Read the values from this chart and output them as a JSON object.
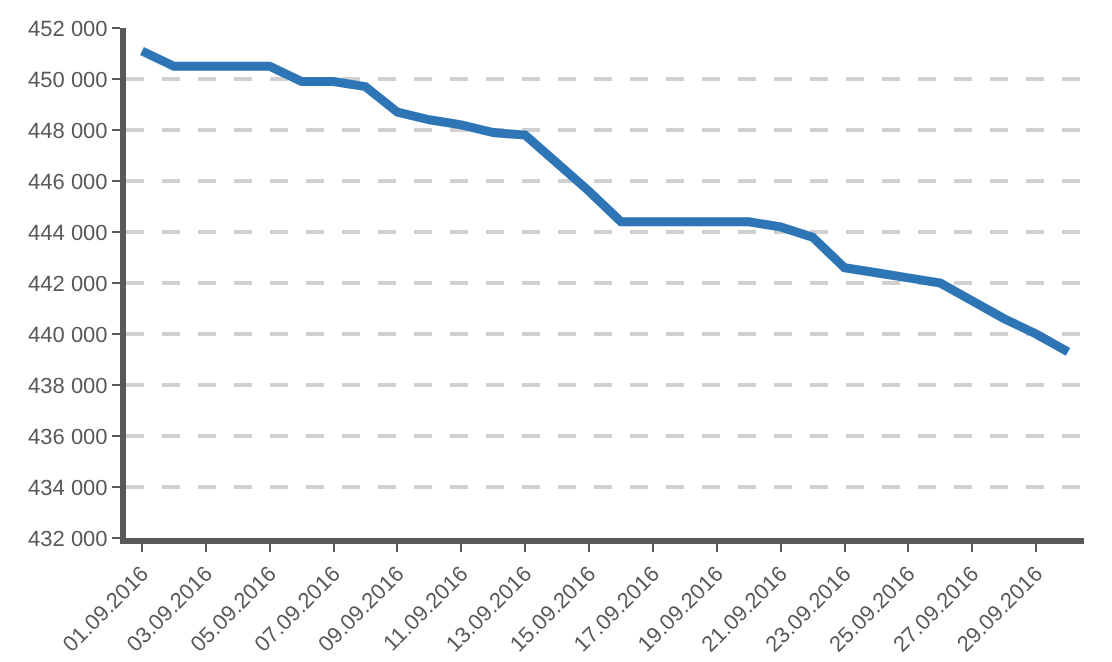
{
  "chart_data": {
    "type": "line",
    "categories": [
      "01.09.2016",
      null,
      "03.09.2016",
      null,
      "05.09.2016",
      null,
      "07.09.2016",
      null,
      "09.09.2016",
      null,
      "11.09.2016",
      null,
      "13.09.2016",
      null,
      "15.09.2016",
      null,
      "17.09.2016",
      null,
      "19.09.2016",
      null,
      "21.09.2016",
      null,
      "23.09.2016",
      null,
      "25.09.2016",
      null,
      "27.09.2016",
      null,
      "29.09.2016",
      null
    ],
    "series": [
      {
        "color": "#2e75b6",
        "values": [
          451100,
          450500,
          450500,
          450500,
          450500,
          449900,
          449900,
          449700,
          448700,
          448400,
          448200,
          447900,
          447800,
          446700,
          445600,
          444400,
          444400,
          444400,
          444400,
          444400,
          444200,
          443800,
          442600,
          442400,
          442200,
          442000,
          441300,
          440600,
          440000,
          439300
        ]
      }
    ],
    "ylim": [
      432000,
      452000
    ],
    "yticks": [
      {
        "value": 432000,
        "label": "432 000"
      },
      {
        "value": 434000,
        "label": "434 000"
      },
      {
        "value": 436000,
        "label": "436 000"
      },
      {
        "value": 438000,
        "label": "438 000"
      },
      {
        "value": 440000,
        "label": "440 000"
      },
      {
        "value": 442000,
        "label": "442 000"
      },
      {
        "value": 444000,
        "label": "444 000"
      },
      {
        "value": 446000,
        "label": "446 000"
      },
      {
        "value": 448000,
        "label": "448 000"
      },
      {
        "value": 450000,
        "label": "450 000"
      },
      {
        "value": 452000,
        "label": "452 000"
      }
    ],
    "grid": "y",
    "marker": "none",
    "line_style": "solid"
  }
}
